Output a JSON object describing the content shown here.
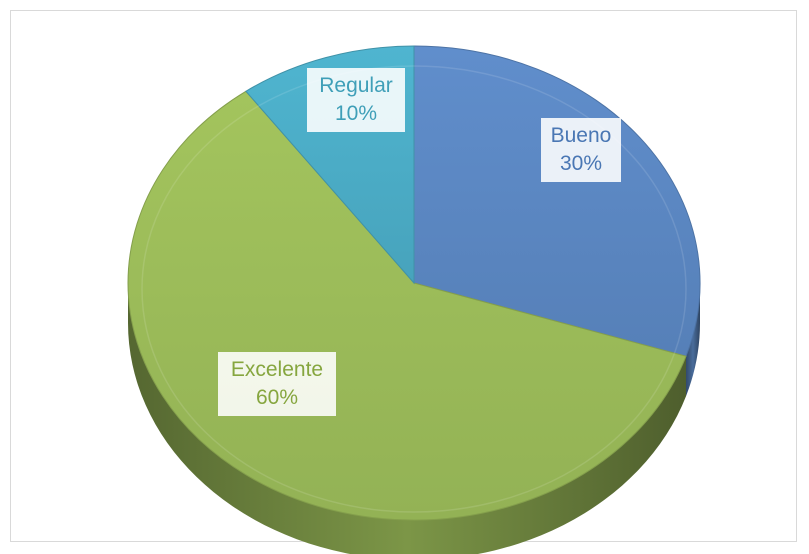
{
  "chart_data": {
    "type": "pie",
    "style": "3d",
    "categories": [
      "Bueno",
      "Excelente",
      "Regular"
    ],
    "values": [
      30,
      60,
      10
    ],
    "value_labels": [
      "30%",
      "60%",
      "10%"
    ],
    "colors": [
      "#5b87c2",
      "#9bbb59",
      "#4bacc6"
    ],
    "title": "",
    "legend": "none",
    "data_labels": "inside-boxed"
  }
}
